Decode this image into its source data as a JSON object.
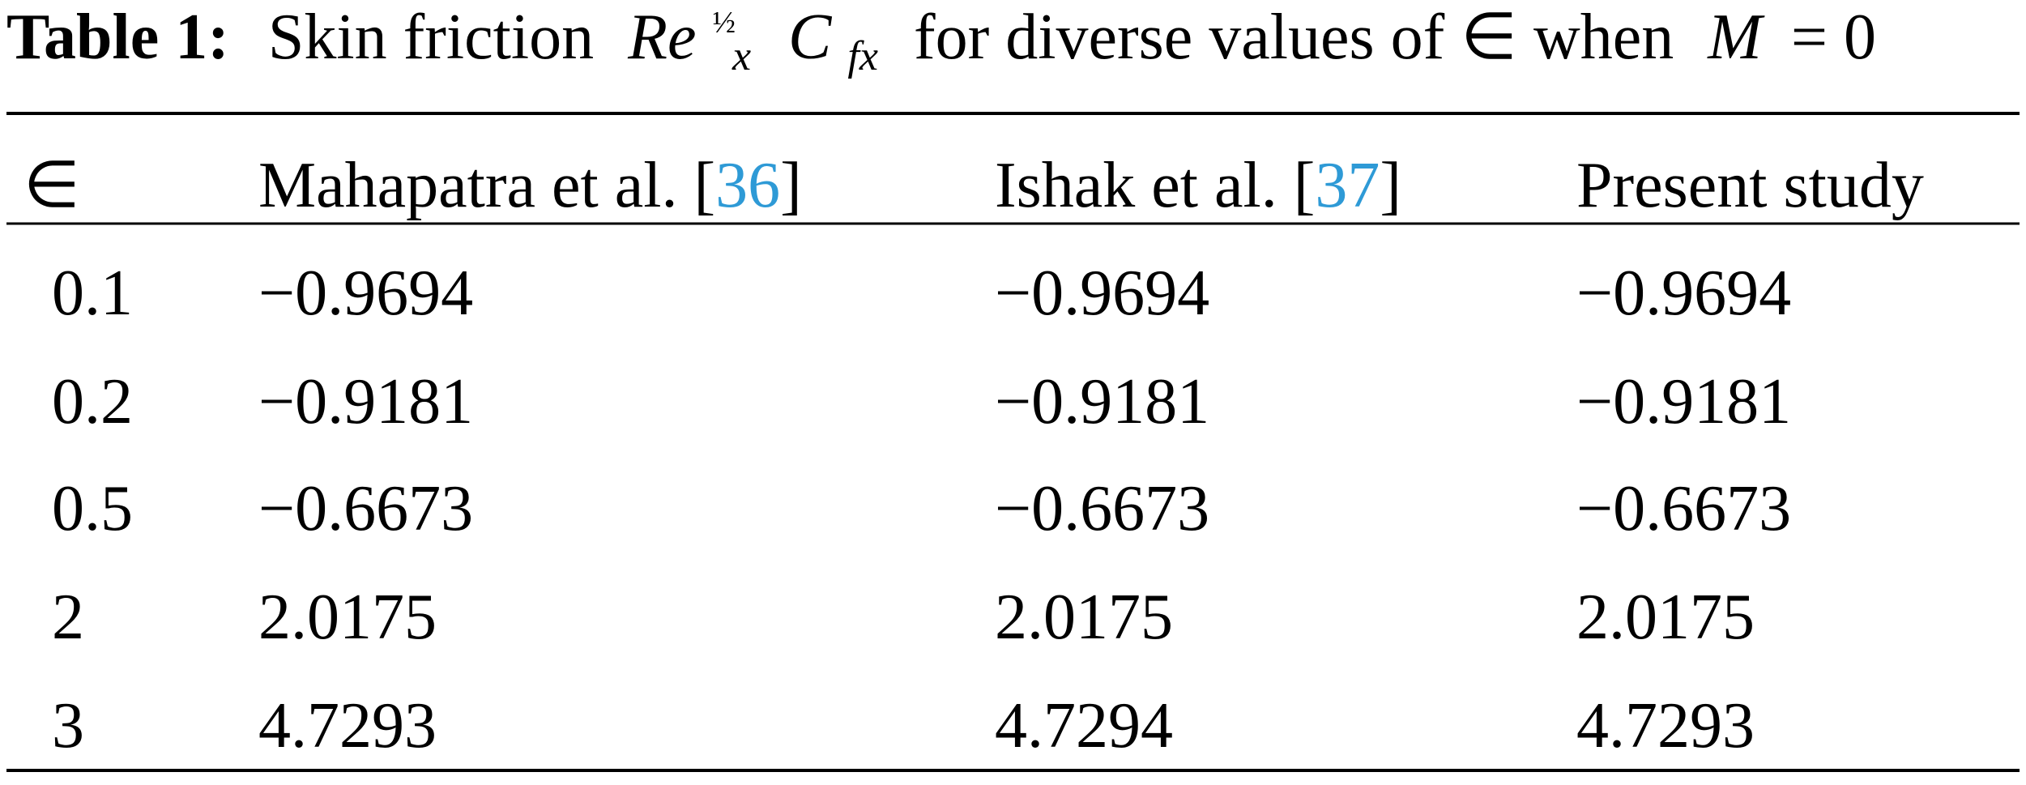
{
  "caption": {
    "label": "Table 1:",
    "text": "Skin friction",
    "math_main": "Re",
    "math_sup": "½",
    "math_sub": "x",
    "math_c": "C",
    "math_c_sub": "fx",
    "text_after": "for diverse values of ∈ when",
    "math_m": "M",
    "math_eq": "= 0"
  },
  "table": {
    "header": [
      {
        "prefix": "∈"
      },
      {
        "prefix": "Mahapatra et al. [",
        "ref": "36",
        "suffix": "]"
      },
      {
        "prefix": "Ishak et al. [",
        "ref": "37",
        "suffix": "]"
      },
      {
        "prefix": "Present study"
      }
    ],
    "rows": [
      [
        "0.1",
        "−0.9694",
        "−0.9694",
        "−0.9694"
      ],
      [
        "0.2",
        "−0.9181",
        "−0.9181",
        "−0.9181"
      ],
      [
        "0.5",
        "−0.6673",
        "−0.6673",
        "−0.6673"
      ],
      [
        "2",
        "2.0175",
        "2.0175",
        "2.0175"
      ],
      [
        "3",
        "4.7293",
        "4.7294",
        "4.7293"
      ]
    ]
  }
}
